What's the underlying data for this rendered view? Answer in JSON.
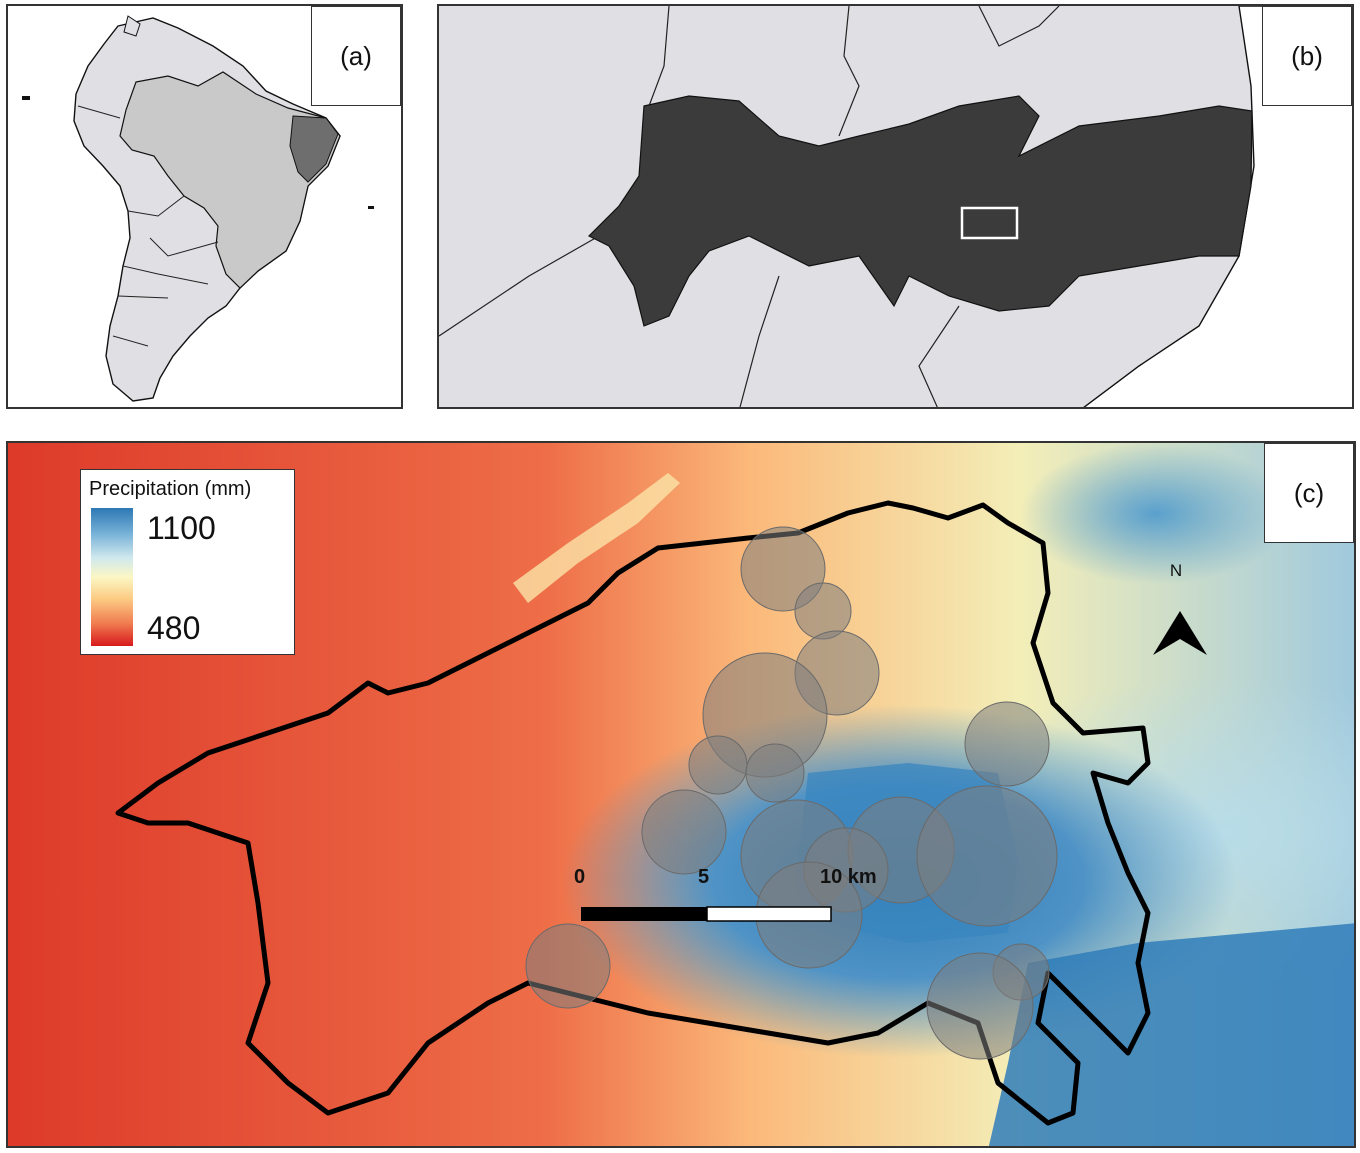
{
  "panel_a": {
    "label": "(a)"
  },
  "panel_b": {
    "label": "(b)"
  },
  "panel_c": {
    "label": "(c)",
    "legend": {
      "title": "Precipitation (mm)",
      "max": "1100",
      "min": "480"
    },
    "north_arrow": {
      "label": "N"
    },
    "scale_bar": {
      "ticks": [
        "0",
        "5",
        "10 km"
      ]
    }
  },
  "colors": {
    "land": "#e0dfe3",
    "brazil": "#c8c8c8",
    "highlight_state": "#6e6e6e",
    "state_dark": "#3c3c3c",
    "precip_low": "#d7191c",
    "precip_mid": "#fbf7c4",
    "precip_high": "#2c7bb6",
    "sample_circle": "#7a7a7a"
  }
}
